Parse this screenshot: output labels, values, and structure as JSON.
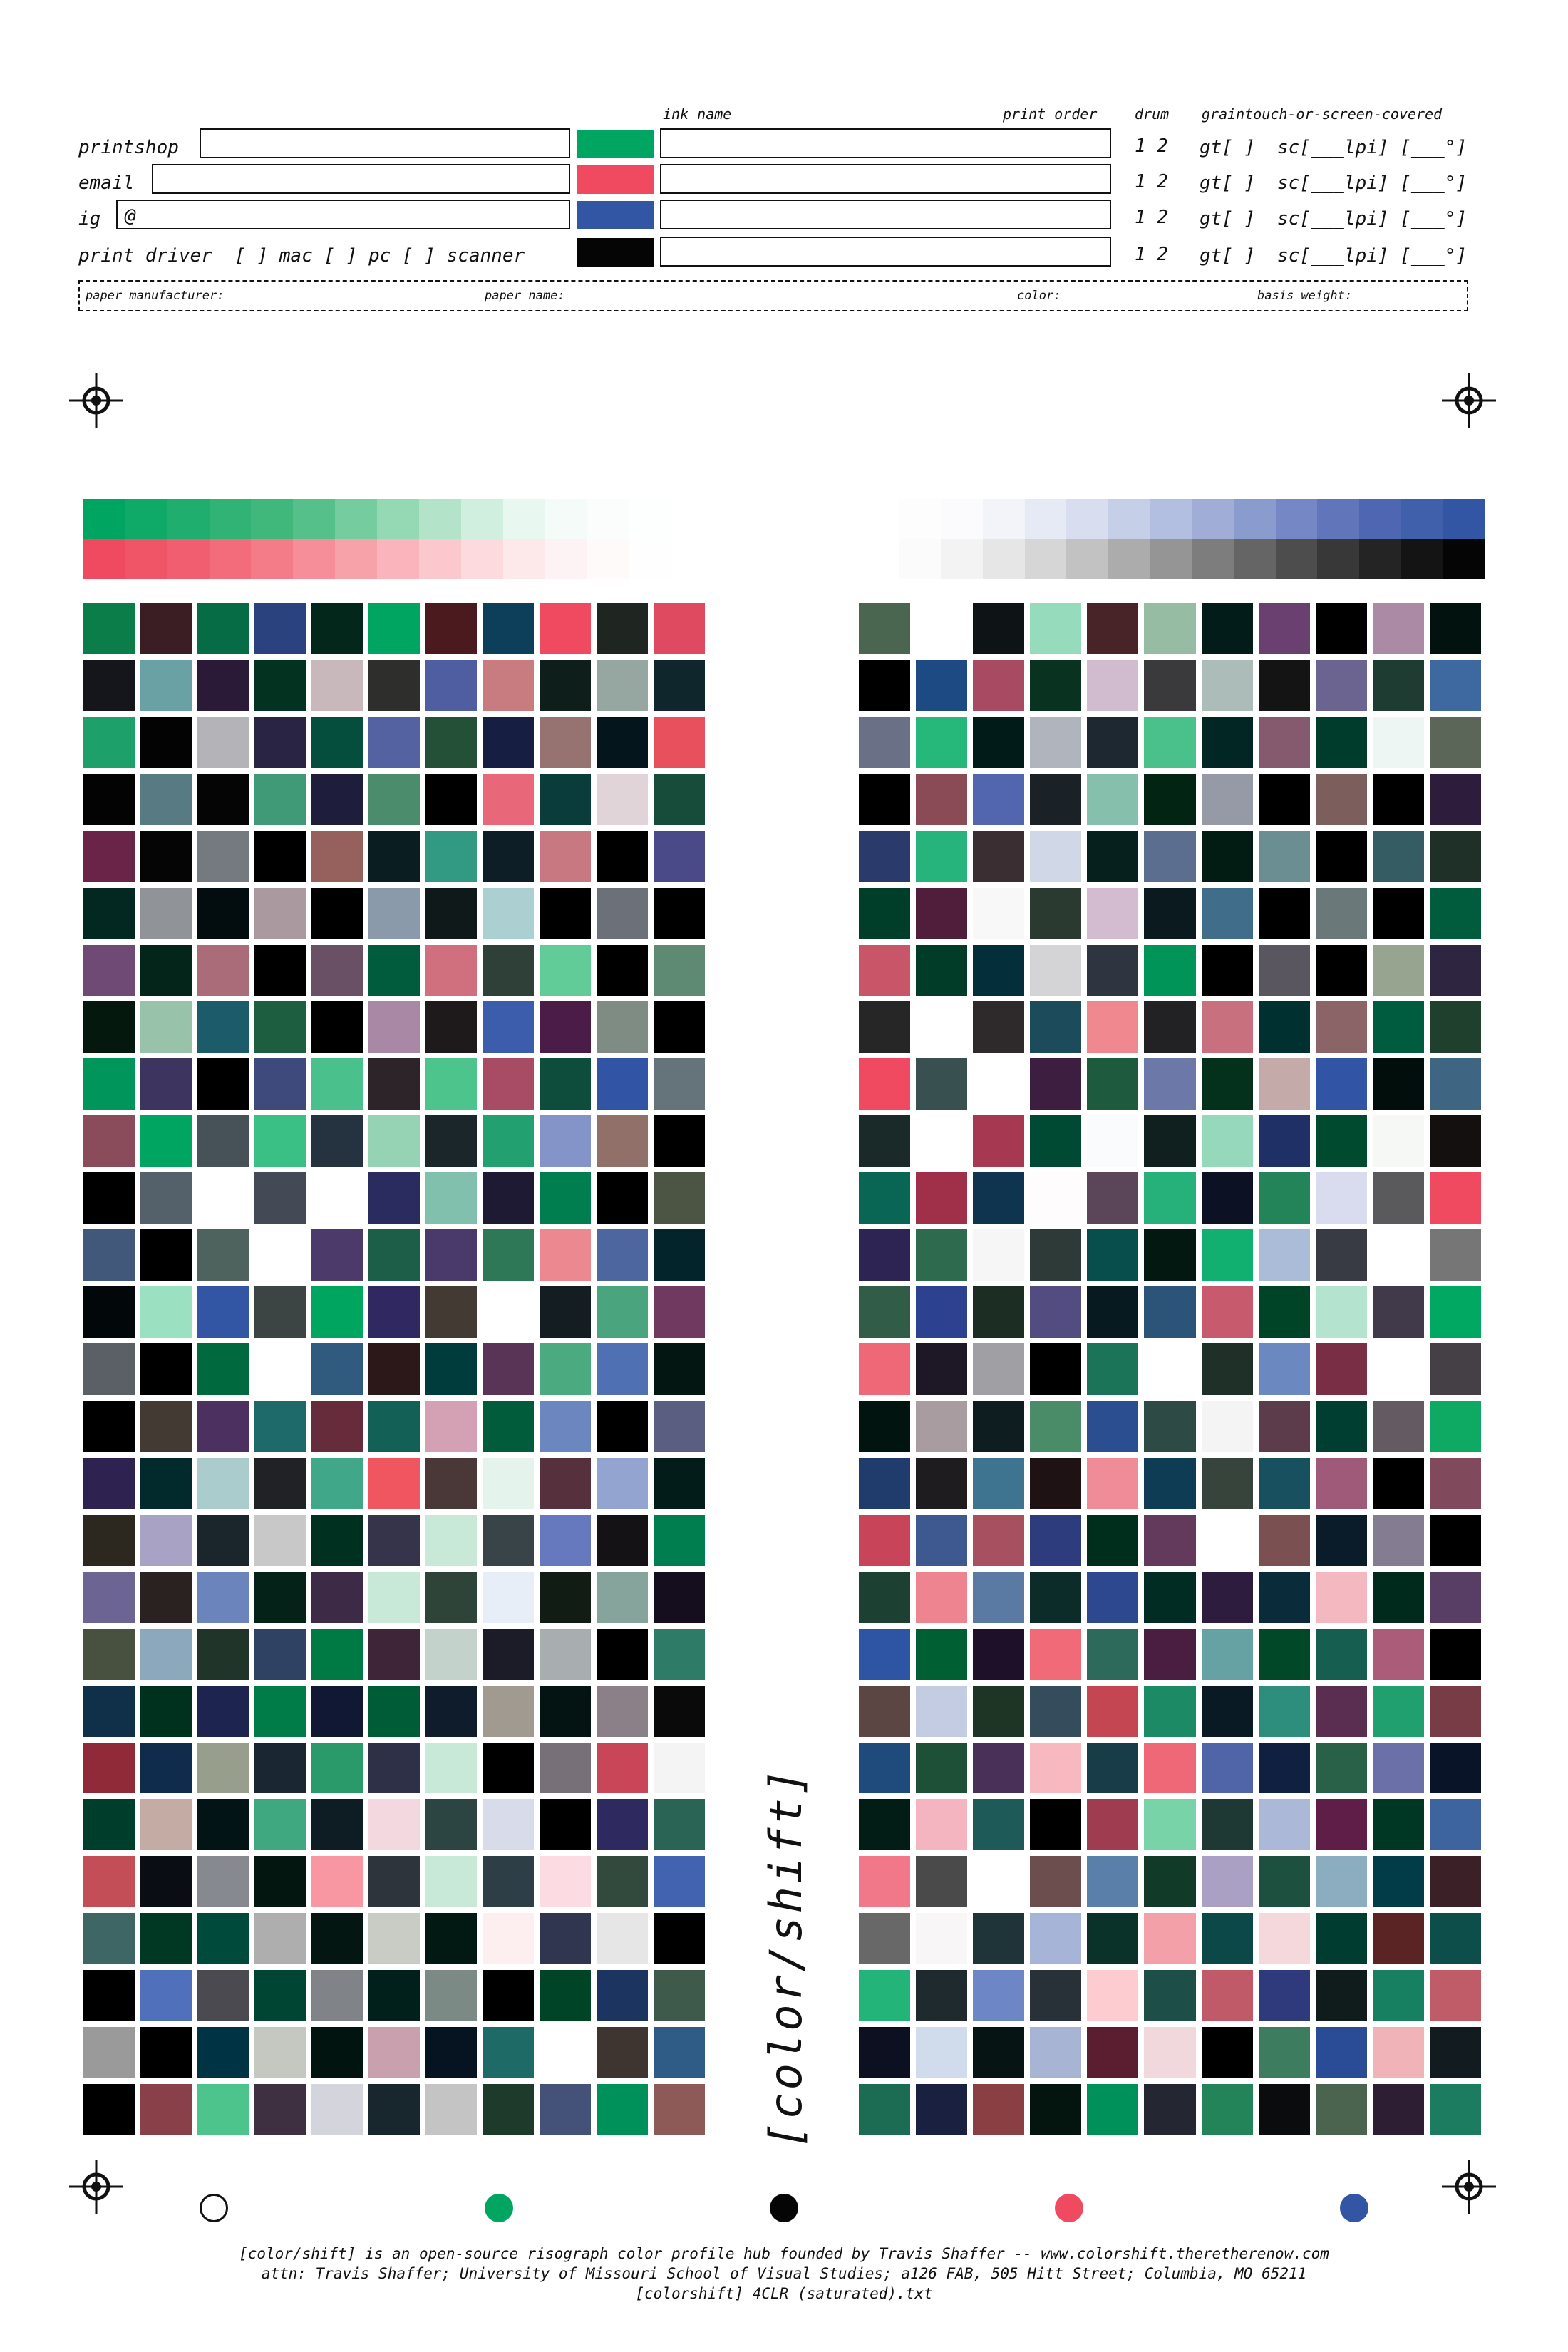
{
  "header": {
    "col_ink_name": "ink name",
    "col_print_order": "print order",
    "col_drum": "drum",
    "col_graintouch": "graintouch-or-screen-covered",
    "printshop_label": "printshop",
    "email_label": "email",
    "ig_label": "ig",
    "ig_prefix": "@",
    "print_driver_label": "print driver  [ ] mac [ ] pc [ ] scanner",
    "rows": [
      {
        "ink_color": "#00a562",
        "drum": "1 2",
        "gt": "gt[ ]",
        "sc": "sc[___lpi] [___°]"
      },
      {
        "ink_color": "#ef4a60",
        "drum": "1 2",
        "gt": "gt[ ]",
        "sc": "sc[___lpi] [___°]"
      },
      {
        "ink_color": "#3255a4",
        "drum": "1 2",
        "gt": "gt[ ]",
        "sc": "sc[___lpi] [___°]"
      },
      {
        "ink_color": "#050505",
        "drum": "1 2",
        "gt": "gt[ ]",
        "sc": "sc[___lpi] [___°]"
      }
    ],
    "paper": {
      "manufacturer": "paper manufacturer:",
      "name": "paper name:",
      "color": "color:",
      "basis_weight": "basis weight:"
    }
  },
  "title": "[color/shift]",
  "inks": {
    "green": "#00a562",
    "pink": "#ef4a60",
    "blue": "#3255a4",
    "black": "#050505"
  },
  "ramps": {
    "left_top": [
      "#00a562",
      "#10aa68",
      "#20ae6e",
      "#30b374",
      "#40b87b",
      "#55c089",
      "#75cc9e",
      "#95d8b4",
      "#b3e4ca",
      "#d0efde",
      "#e8f7ef",
      "#f5fbf8",
      "#fbfdfc",
      "#fdfefe",
      "#ffffff"
    ],
    "left_bottom": [
      "#ef4a60",
      "#f05467",
      "#f15e70",
      "#f26c7b",
      "#f37c88",
      "#f58e98",
      "#f7a1a9",
      "#f9b5bb",
      "#fbc8cd",
      "#fcdadd",
      "#fde8ea",
      "#fef3f4",
      "#fffafa",
      "#fffefe",
      "#ffffff"
    ],
    "right_top": [
      "#ffffff",
      "#fdfdfe",
      "#fbfbfd",
      "#f2f4fa",
      "#e6eaf5",
      "#d8def0",
      "#c6cfe8",
      "#b3bfe0",
      "#9fadd7",
      "#8a9bce",
      "#7588c5",
      "#6175bb",
      "#4f67b2",
      "#4060ab",
      "#3255a4"
    ],
    "right_bottom": [
      "#ffffff",
      "#fbfbfb",
      "#f3f3f3",
      "#e6e6e6",
      "#d6d6d6",
      "#c2c2c2",
      "#acacac",
      "#959595",
      "#7d7d7d",
      "#656565",
      "#4d4d4d",
      "#383838",
      "#242424",
      "#141414",
      "#050505"
    ]
  },
  "swatches_left": [
    "#0a7d48",
    "#3a1e24",
    "#066c45",
    "#2a427e",
    "#03271b",
    "#00a562",
    "#4a1a1e",
    "#0d3e5a",
    "#ef4a60",
    "#1f2520",
    "#e04a60",
    "#15161c",
    "#6aa1a4",
    "#2a1a38",
    "#033320",
    "#c8b8bc",
    "#2e2e2c",
    "#4e5ea0",
    "#c87c80",
    "#0e1e1a",
    "#96a6a0",
    "#0e262c",
    "#1ea06a",
    "#030303",
    "#b3b3b8",
    "#2a2444",
    "#054d3c",
    "#5462a2",
    "#245038",
    "#161e42",
    "#967270",
    "#04161c",
    "#e8505e",
    "#030303",
    "#587a82",
    "#050505",
    "#409a78",
    "#1e1e3c",
    "#4a8c6c",
    "#000000",
    "#e8687a",
    "#0a3c3c",
    "#e0d4d8",
    "#184c3a",
    "#6a2448",
    "#050505",
    "#747a80",
    "#000000",
    "#96605c",
    "#0a1e22",
    "#329a82",
    "#0e1e26",
    "#c87880",
    "#000000",
    "#4a4a88",
    "#032822",
    "#909498",
    "#030c0e",
    "#aa9aa0",
    "#000000",
    "#8a9aaa",
    "#10191a",
    "#acd0d2",
    "#000000",
    "#6c7078",
    "#000000",
    "#6e4a74",
    "#03251a",
    "#aa6c78",
    "#000000",
    "#6a5064",
    "#005c3c",
    "#d0707e",
    "#2e4038",
    "#62cc98",
    "#000000",
    "#5e8a74",
    "#04180e",
    "#98c2aa",
    "#1c5c6a",
    "#1e5e40",
    "#000000",
    "#a888a4",
    "#1e1a1c",
    "#3c5cac",
    "#4c1c48",
    "#7e8c84",
    "#000000",
    "#00955a",
    "#3e3460",
    "#000000",
    "#3e4a7c",
    "#4ac08c",
    "#2c2428",
    "#4cc48c",
    "#a84c66",
    "#0e4c3c",
    "#3254a4",
    "#64747a",
    "#8a4c5a",
    "#00a562",
    "#465258",
    "#3ac084",
    "#253240",
    "#96d2b4",
    "#1a262a",
    "#22a070",
    "#8494c8",
    "#907068",
    "#000000",
    "#000000",
    "#54606a",
    "#ffffff",
    "#434a56",
    "#ffffff",
    "#2a2c60",
    "#80c0ac",
    "#1e1a34",
    "#007e50",
    "#000000",
    "#4c5444",
    "#42587a",
    "#000000",
    "#4e625e",
    "#ffffff",
    "#4c3a6a",
    "#1c5e48",
    "#4a3a6c",
    "#2e7858",
    "#ec8890",
    "#4e66a0",
    "#02242a",
    "#02080a",
    "#9ce0c2",
    "#3256a4",
    "#3c4444",
    "#00a660",
    "#302860",
    "#443a34",
    "#ffffff",
    "#141e22",
    "#4aa47e",
    "#703a60",
    "#5a6066",
    "#000000",
    "#006a3e",
    "#ffffff",
    "#305a7e",
    "#2c1818",
    "#003c3c",
    "#5a3456",
    "#4caa80",
    "#5070b4",
    "#041612",
    "#000000",
    "#443a34",
    "#4c3060",
    "#1e6a6a",
    "#662c3c",
    "#126056",
    "#d4a0b4",
    "#005c3a",
    "#6c86c0",
    "#000000",
    "#5a5e80",
    "#2e2250",
    "#022a2c",
    "#aacccc",
    "#202226",
    "#40a888",
    "#f05660",
    "#4a3838",
    "#e4f4ec",
    "#56303c",
    "#94a4d0",
    "#021c1a",
    "#2c2820",
    "#a8a2c4",
    "#1a262c",
    "#c8c8c8",
    "#003020",
    "#36344a",
    "#c8e8d8",
    "#384448",
    "#6678be",
    "#141214",
    "#007e50",
    "#6c6492",
    "#2a2220",
    "#6c84bc",
    "#042218",
    "#3c2a46",
    "#c8e8d8",
    "#2e4438",
    "#e8eef8",
    "#101c14",
    "#86a49c",
    "#140e1e",
    "#485040",
    "#8ca8bc",
    "#20342a",
    "#304264",
    "#007a44",
    "#3e2638",
    "#c4d2cc",
    "#1c1c28",
    "#a8aeb0",
    "#000000",
    "#2e7c68",
    "#10304a",
    "#00301e",
    "#1e2450",
    "#007c48",
    "#101834",
    "#005c36",
    "#0e1c2c",
    "#a09a90",
    "#041412",
    "#8c8088",
    "#0a0a0a",
    "#902a38",
    "#102c4c",
    "#989e8c",
    "#1a2632",
    "#2a9a6a",
    "#2e3048",
    "#c8e8d8",
    "#000000",
    "#787078",
    "#c84658",
    "#f4f4f4",
    "#003e2c",
    "#c4aca4",
    "#031416",
    "#40a880",
    "#0e1c24",
    "#f4d8e0",
    "#2c4442",
    "#d8dcea",
    "#000000",
    "#2e2a60",
    "#2a6454",
    "#c44e58",
    "#0a0e14",
    "#868a90",
    "#041610",
    "#f897a2",
    "#2e343c",
    "#c8e8d8",
    "#2e3e46",
    "#fcdce2",
    "#324a3e",
    "#4264b0",
    "#3e6664",
    "#003824",
    "#004a3c",
    "#aeaeae",
    "#031612",
    "#c8ccc4",
    "#021812",
    "#fdeef0",
    "#303650",
    "#e6e6e6",
    "#000000",
    "#000000",
    "#5070bc",
    "#4a4a50",
    "#004434",
    "#808488",
    "#01201c",
    "#7c8a86",
    "#000000",
    "#004428",
    "#1c3460",
    "#3e5a4a",
    "#9a9a9a",
    "#000000",
    "#003444",
    "#c4c8c0",
    "#021410",
    "#c8a0ae",
    "#051420",
    "#1e6a66",
    "#ffffff",
    "#3e3430",
    "#2e5c86",
    "#000000",
    "#8a4048",
    "#4cc48c",
    "#3e3040",
    "#d4d4dc",
    "#18262e",
    "#c4c4c4",
    "#1e3a2a",
    "#44527a",
    "#00915a",
    "#8e5a58"
  ],
  "swatches_right": [
    "#4a6650",
    "#ffffff",
    "#0e1416",
    "#96dcbc",
    "#482428",
    "#96bca4",
    "#021c1a",
    "#6a4070",
    "#000000",
    "#aa8aa4",
    "#02120e",
    "#000000",
    "#1e4a84",
    "#a84a62",
    "#0a3220",
    "#d0bcce",
    "#3a3a3c",
    "#acbcb8",
    "#141414",
    "#6c6490",
    "#1e3c32",
    "#3e68a0",
    "#6a7086",
    "#26b87a",
    "#011c18",
    "#b0b4bc",
    "#1e2830",
    "#4ac08a",
    "#012624",
    "#865a6e",
    "#003c2c",
    "#eef6f4",
    "#5c6658",
    "#000000",
    "#8a4a56",
    "#5266b0",
    "#1a2228",
    "#86c0ac",
    "#022412",
    "#969aa6",
    "#000000",
    "#7c5e5c",
    "#000000",
    "#2e1c3c",
    "#2a3a6a",
    "#26b47c",
    "#3a2e32",
    "#d0d8e8",
    "#06201e",
    "#5c6e90",
    "#021c14",
    "#6a8e92",
    "#000000",
    "#345c62",
    "#1e3028",
    "#003e2a",
    "#501e3a",
    "#f8f8f8",
    "#2a3a30",
    "#d4bcd0",
    "#0a1a1e",
    "#406e8a",
    "#000000",
    "#6a787a",
    "#000000",
    "#005c3c",
    "#c85668",
    "#003c28",
    "#042e3a",
    "#d4d4d6",
    "#2e3440",
    "#009458",
    "#000000",
    "#5a5660",
    "#000000",
    "#96a490",
    "#2e2640",
    "#262626",
    "#ffffff",
    "#2e2a2c",
    "#1c4c5c",
    "#f08890",
    "#222224",
    "#c8707e",
    "#003030",
    "#8a6466",
    "#005c3e",
    "#20402e",
    "#f04a60",
    "#385050",
    "#ffffff",
    "#3e1e40",
    "#1e5a3e",
    "#6c78a8",
    "#03311c",
    "#c4aaa8",
    "#3254a4",
    "#020e0c",
    "#3e6682",
    "#1a2a28",
    "#ffffff",
    "#a63852",
    "#004a34",
    "#fafbfd",
    "#10201e",
    "#96d8bc",
    "#1e3066",
    "#004a30",
    "#f6f8f6",
    "#141010",
    "#0a6654",
    "#a0304a",
    "#0e3450",
    "#fefcfc",
    "#5a4658",
    "#26b07a",
    "#0c1224",
    "#228458",
    "#d8dcee",
    "#5a5a5c",
    "#ef4a60",
    "#2e2454",
    "#2e6a4e",
    "#f6f6f6",
    "#2e3a38",
    "#084e4c",
    "#041812",
    "#12b070",
    "#aabcd8",
    "#383a44",
    "#ffffff",
    "#767676",
    "#305c48",
    "#2c4290",
    "#1c2e24",
    "#524c80",
    "#061a20",
    "#2c5478",
    "#c85a6e",
    "#004428",
    "#b4e4d0",
    "#403a4a",
    "#00a862",
    "#ee6878",
    "#1e1826",
    "#a0a0a4",
    "#000000",
    "#1c7458",
    "#ffffff",
    "#1e3028",
    "#6c88c0",
    "#7a2e46",
    "#ffffff",
    "#444046",
    "#021410",
    "#a89ca0",
    "#0e1e20",
    "#4a8c68",
    "#2a4e90",
    "#2e4a44",
    "#f4f4f4",
    "#5c3c4a",
    "#003e32",
    "#645a62",
    "#0eaa64",
    "#203c6c",
    "#1e1c1e",
    "#3e7490",
    "#1e1214",
    "#f08c98",
    "#0e3c54",
    "#36443c",
    "#185060",
    "#9e5a78",
    "#000000",
    "#804a5c",
    "#c84458",
    "#3e5890",
    "#a65060",
    "#2c3c7c",
    "#002e1c",
    "#643a5c",
    "#ffffff",
    "#7a5050",
    "#0a1c2a",
    "#847c90",
    "#000000",
    "#1c4032",
    "#ee8490",
    "#5a7aa4",
    "#0c2c2a",
    "#2e4890",
    "#002c24",
    "#2e1c3e",
    "#0a2c3a",
    "#f4b8c0",
    "#002a1c",
    "#583e64",
    "#2e54a4",
    "#006034",
    "#1e1028",
    "#f06a78",
    "#2e6a5c",
    "#4a1e40",
    "#66a2a4",
    "#004828",
    "#165e50",
    "#aa5c78",
    "#000000",
    "#5c4644",
    "#c4cce4",
    "#1e3424",
    "#344c5c",
    "#c44652",
    "#1c8a64",
    "#0a1a24",
    "#2e8e7e",
    "#5a2e50",
    "#20a06e",
    "#783c46",
    "#1e4a7c",
    "#1e5038",
    "#483058",
    "#f8b8c0",
    "#183c48",
    "#ee6878",
    "#5064a8",
    "#102040",
    "#286048",
    "#6c70a8",
    "#0a1428",
    "#021c16",
    "#f4b4c0",
    "#1e5a58",
    "#000000",
    "#a03c50",
    "#78d4a8",
    "#1e3834",
    "#acb8d8",
    "#5e1e48",
    "#003624",
    "#3e64a0",
    "#f07888",
    "#4a4a4a",
    "#ffffff",
    "#6c4e4e",
    "#5a80aa",
    "#123a28",
    "#aaa0c4",
    "#1e5040",
    "#8cacc0",
    "#023c48",
    "#3c2028",
    "#686868",
    "#f8f6f6",
    "#1e3438",
    "#a6b4d8",
    "#0a3228",
    "#f4a0a8",
    "#0c4848",
    "#f4d8dc",
    "#003c30",
    "#5a2424",
    "#0e4e4a",
    "#22b478",
    "#1e2a2e",
    "#6c86c6",
    "#283038",
    "#fcccd0",
    "#1e4e48",
    "#c05a68",
    "#2e3a7c",
    "#101c1c",
    "#168060",
    "#c05c68",
    "#0c1020",
    "#d0dcec",
    "#061414",
    "#a8b4d4",
    "#5a1e30",
    "#f0d8dc",
    "#000000",
    "#3e7c60",
    "#2a4c96",
    "#f0b4b8",
    "#121c20",
    "#1c6c54",
    "#1a2040",
    "#8a4042",
    "#03150e",
    "#00915a",
    "#242632",
    "#228458",
    "#0a0c0e",
    "#4a6450",
    "#2e1e34",
    "#1c7c60"
  ],
  "dots": [
    "#ffffff",
    "#00a562",
    "#050505",
    "#ef4a60",
    "#3255a4"
  ],
  "footer": {
    "line1": "[color/shift] is an open-source risograph color profile hub founded by Travis Shaffer -- www.colorshift.theretherenow.com",
    "line2": "attn: Travis Shaffer; University of Missouri School of Visual Studies; a126 FAB, 505 Hitt Street; Columbia, MO 65211",
    "line3": "[colorshift] 4CLR (saturated).txt"
  }
}
